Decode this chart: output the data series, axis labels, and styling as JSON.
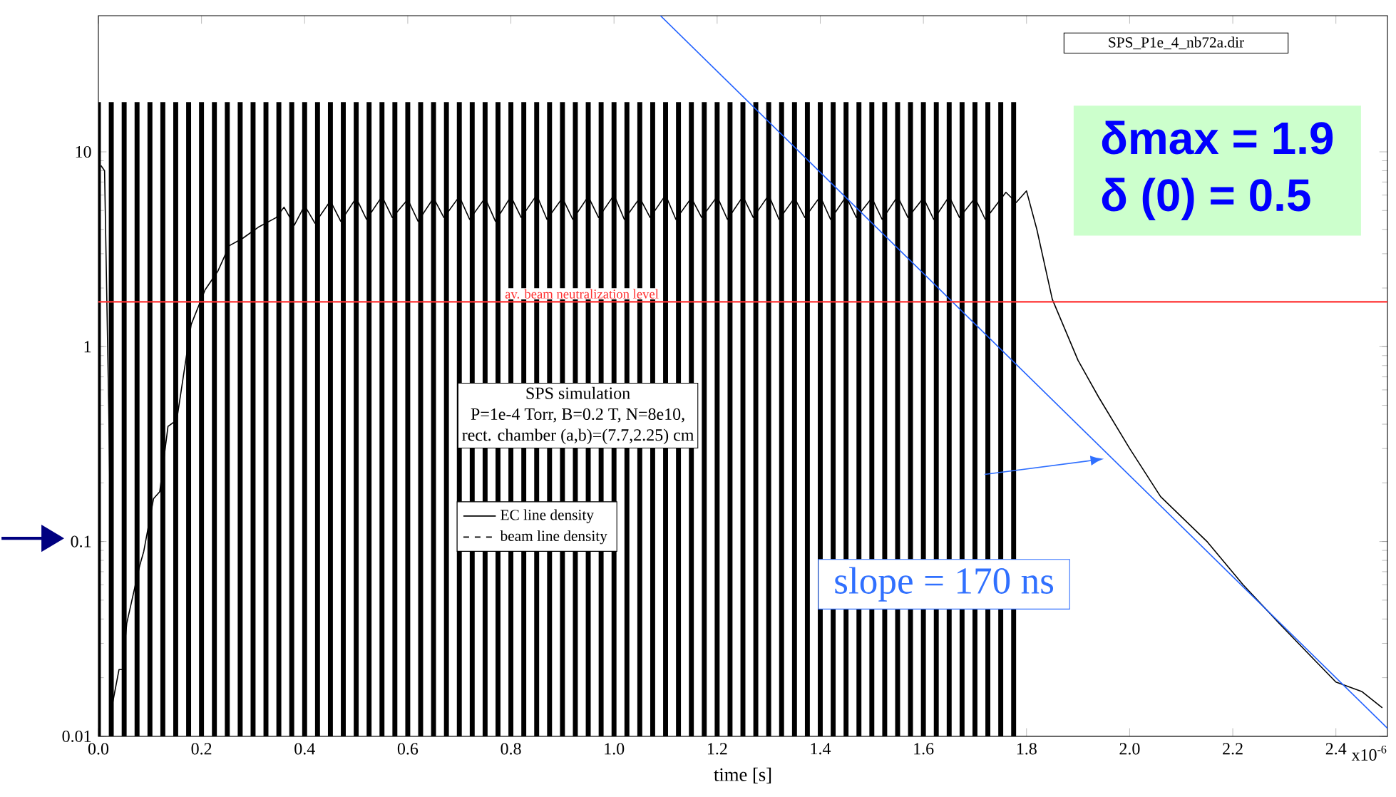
{
  "chart_data": {
    "type": "line",
    "xlabel": "time [s]",
    "xlim": [
      0,
      2.5
    ],
    "ylim": [
      0.01,
      50
    ],
    "log": "y",
    "xticks": [
      {
        "value": 0,
        "label": "0.0"
      },
      {
        "value": 0.2,
        "label": "0.2"
      },
      {
        "value": 0.4,
        "label": "0.4"
      },
      {
        "value": 0.6,
        "label": "0.6"
      },
      {
        "value": 0.8,
        "label": "0.8"
      },
      {
        "value": 1.0,
        "label": "1.0"
      },
      {
        "value": 1.2,
        "label": "1.2"
      },
      {
        "value": 1.4,
        "label": "1.4"
      },
      {
        "value": 1.6,
        "label": "1.6"
      },
      {
        "value": 1.8,
        "label": "1.8"
      },
      {
        "value": 2.0,
        "label": "2.0"
      },
      {
        "value": 2.2,
        "label": "2.2"
      },
      {
        "value": 2.4,
        "label": "2.4"
      }
    ],
    "yticks": [
      0.01,
      0.1,
      1,
      10
    ],
    "legend": "center",
    "grid": false,
    "series": [
      {
        "name": "EC line density",
        "color": "#000000",
        "line_style": "solid",
        "x": [
          0.005,
          0.012,
          0.02,
          0.028,
          0.04,
          0.047,
          0.055,
          0.08,
          0.088,
          0.107,
          0.119,
          0.135,
          0.152,
          0.18,
          0.207,
          0.232,
          0.254,
          0.28,
          0.31,
          0.345,
          0.36,
          0.38,
          0.4,
          0.42,
          0.45,
          0.47,
          0.5,
          0.52,
          0.55,
          0.57,
          0.6,
          0.62,
          0.65,
          0.67,
          0.7,
          0.72,
          0.75,
          0.77,
          0.8,
          0.82,
          0.85,
          0.87,
          0.9,
          0.92,
          0.95,
          0.97,
          1.0,
          1.02,
          1.05,
          1.07,
          1.1,
          1.12,
          1.15,
          1.17,
          1.2,
          1.22,
          1.25,
          1.27,
          1.3,
          1.32,
          1.35,
          1.37,
          1.4,
          1.42,
          1.45,
          1.47,
          1.5,
          1.52,
          1.55,
          1.57,
          1.6,
          1.62,
          1.65,
          1.67,
          1.7,
          1.72,
          1.76,
          1.78,
          1.8,
          1.82,
          1.85,
          1.9,
          1.94,
          2.0,
          2.06,
          2.15,
          2.22,
          2.29,
          2.35,
          2.4,
          2.45,
          2.49
        ],
        "values": [
          8.5,
          8,
          0.5,
          0.015,
          0.022,
          0.022,
          0.038,
          0.075,
          0.089,
          0.166,
          0.18,
          0.39,
          0.42,
          1.3,
          1.96,
          2.45,
          3.3,
          3.6,
          4.1,
          4.6,
          5.2,
          4.2,
          5.3,
          4.3,
          5.6,
          4.4,
          5.8,
          4.5,
          5.9,
          4.6,
          5.7,
          4.4,
          5.8,
          4.6,
          5.9,
          4.5,
          5.8,
          4.4,
          5.9,
          4.6,
          6.0,
          4.5,
          5.8,
          4.5,
          5.9,
          4.6,
          6.0,
          4.5,
          5.8,
          4.6,
          6.0,
          4.5,
          5.8,
          4.6,
          5.9,
          4.5,
          5.9,
          4.6,
          6.0,
          4.5,
          5.8,
          4.6,
          5.9,
          4.5,
          5.9,
          4.6,
          5.8,
          4.5,
          5.9,
          4.6,
          5.8,
          4.5,
          5.9,
          4.6,
          5.8,
          4.5,
          6.2,
          5.5,
          6.3,
          4.0,
          1.75,
          0.85,
          0.55,
          0.3,
          0.17,
          0.1,
          0.06,
          0.038,
          0.026,
          0.019,
          0.017,
          0.014
        ]
      },
      {
        "name": "beam line density",
        "type": "bar",
        "color": "#000000",
        "line_style": "dashed",
        "x": [
          0.0,
          0.025,
          0.05,
          0.075,
          0.1,
          0.125,
          0.15,
          0.175,
          0.2,
          0.225,
          0.25,
          0.275,
          0.3,
          0.325,
          0.35,
          0.375,
          0.4,
          0.425,
          0.45,
          0.475,
          0.5,
          0.525,
          0.55,
          0.575,
          0.6,
          0.625,
          0.65,
          0.675,
          0.7,
          0.725,
          0.75,
          0.775,
          0.8,
          0.825,
          0.85,
          0.875,
          0.9,
          0.925,
          0.95,
          0.975,
          1.0,
          1.025,
          1.05,
          1.075,
          1.1,
          1.125,
          1.15,
          1.175,
          1.2,
          1.225,
          1.25,
          1.275,
          1.3,
          1.325,
          1.35,
          1.375,
          1.4,
          1.425,
          1.45,
          1.475,
          1.5,
          1.525,
          1.55,
          1.575,
          1.6,
          1.625,
          1.65,
          1.675,
          1.7,
          1.725,
          1.75,
          1.775
        ],
        "values": [
          18,
          18,
          18,
          18,
          18,
          18,
          18,
          18,
          18,
          18,
          18,
          18,
          18,
          18,
          18,
          18,
          18,
          18,
          18,
          18,
          18,
          18,
          18,
          18,
          18,
          18,
          18,
          18,
          18,
          18,
          18,
          18,
          18,
          18,
          18,
          18,
          18,
          18,
          18,
          18,
          18,
          18,
          18,
          18,
          18,
          18,
          18,
          18,
          18,
          18,
          18,
          18,
          18,
          18,
          18,
          18,
          18,
          18,
          18,
          18,
          18,
          18,
          18,
          18,
          18,
          18,
          18,
          18,
          18,
          18,
          18,
          18
        ]
      },
      {
        "color": "#2060ff",
        "line_style": "solid",
        "x": [
          1.09,
          2.5
        ],
        "values": [
          50,
          0.011
        ]
      }
    ],
    "ref_lines": [
      {
        "axis": "y",
        "value": 1.7,
        "label": "av. beam neutralization level",
        "color": "#ff3030"
      }
    ],
    "annotations": [
      "SPS_P1e_4_nb72a.dir",
      "δmax = 1.9",
      "δ (0) = 0.5",
      "SPS simulation",
      "P=1e-4 Torr, B=0.2 T, N=8e10,",
      "rect. chamber (a,b)=(7.7,2.25) cm",
      "slope = 170 ns",
      "x10$^{-6}$"
    ]
  }
}
